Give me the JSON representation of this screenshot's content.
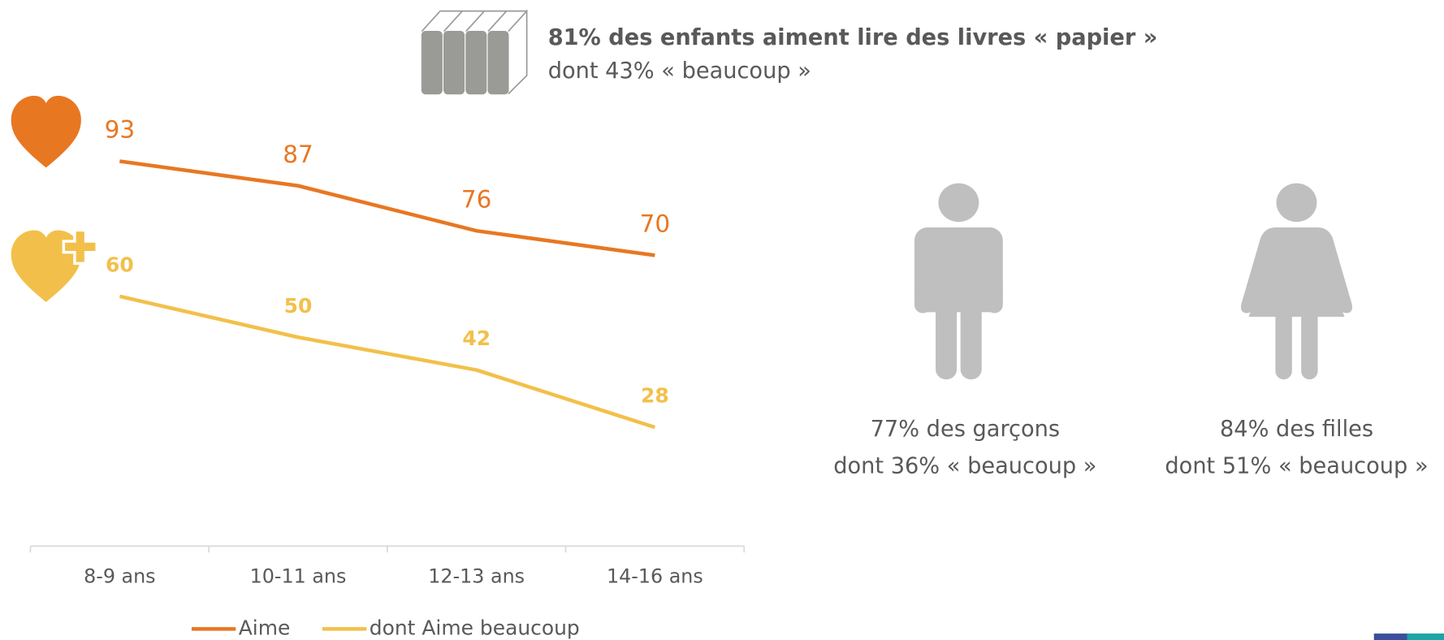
{
  "chart_data": {
    "type": "line",
    "categories": [
      "8-9 ans",
      "10-11 ans",
      "12-13 ans",
      "14-16 ans"
    ],
    "series": [
      {
        "name": "Aime",
        "color": "#e87722",
        "values": [
          93,
          87,
          76,
          70
        ]
      },
      {
        "name": "dont Aime beaucoup",
        "color": "#f2c04a",
        "values": [
          60,
          50,
          42,
          28
        ]
      }
    ],
    "ylim": [
      0,
      110
    ],
    "grid": false,
    "legend": "bottom"
  },
  "books": {
    "title": "81% des enfants aiment lire des livres « papier »",
    "subtitle": "dont 43% « beaucoup »"
  },
  "boys": {
    "title": "77% des garçons",
    "subtitle": "dont 36% « beaucoup »"
  },
  "girls": {
    "title": "84% des filles",
    "subtitle": "dont 51% « beaucoup »"
  }
}
